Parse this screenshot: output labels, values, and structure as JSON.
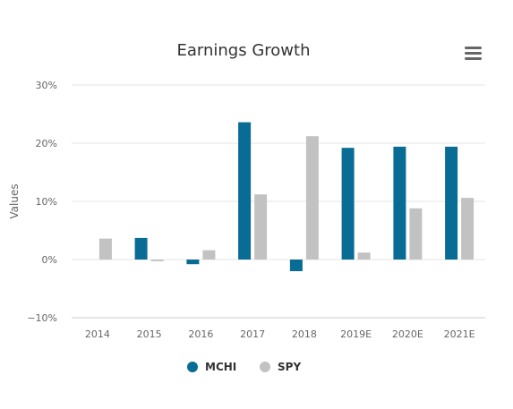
{
  "colors": {
    "mchi": "#086c94",
    "spy": "#c2c2c2",
    "grid": "#e6e6e6",
    "text": "#333333",
    "axis_text": "#666666"
  },
  "icons": {
    "menu": "hamburger-menu-icon"
  },
  "chart_data": {
    "type": "bar",
    "title": "Earnings Growth",
    "xlabel": "",
    "ylabel": "Values",
    "categories": [
      "2014",
      "2015",
      "2016",
      "2017",
      "2018",
      "2019E",
      "2020E",
      "2021E"
    ],
    "series": [
      {
        "name": "MCHI",
        "color": "#086c94",
        "values": [
          null,
          3.7,
          -0.8,
          23.6,
          -2.0,
          19.2,
          19.4,
          19.4
        ]
      },
      {
        "name": "SPY",
        "color": "#c2c2c2",
        "values": [
          3.6,
          -0.3,
          1.6,
          11.2,
          21.2,
          1.2,
          8.8,
          10.6
        ]
      }
    ],
    "ylim": [
      -10,
      30
    ],
    "yticks": [
      -10,
      0,
      10,
      20,
      30
    ],
    "ytick_labels": [
      "−10%",
      "0%",
      "10%",
      "20%",
      "30%"
    ],
    "grid": true,
    "legend_position": "bottom-center"
  }
}
